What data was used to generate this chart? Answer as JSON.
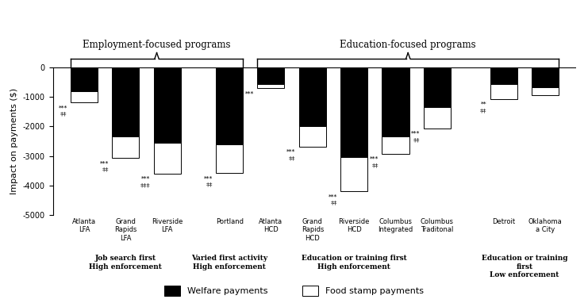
{
  "bars": [
    {
      "label": "Atlanta\nLFA",
      "welfare": -800,
      "foodstamp": -390,
      "sig1": "***",
      "sig2": "‡‡"
    },
    {
      "label": "Grand\nRapids\nLFA",
      "welfare": -2350,
      "foodstamp": -720,
      "sig1": "***",
      "sig2": "‡‡"
    },
    {
      "label": "Riverside\nLFA",
      "welfare": -2550,
      "foodstamp": -1050,
      "sig1": "***",
      "sig2": "‡‡‡"
    },
    {
      "label": "Portland",
      "welfare": -2600,
      "foodstamp": -980,
      "sig1": "***",
      "sig2": "‡‡"
    },
    {
      "label": "Atlanta\nHCD",
      "welfare": -570,
      "foodstamp": -130,
      "sig1": "***",
      "sig2": ""
    },
    {
      "label": "Grand\nRapids\nHCD",
      "welfare": -2000,
      "foodstamp": -680,
      "sig1": "***",
      "sig2": "‡‡"
    },
    {
      "label": "Riverside\nHCD",
      "welfare": -3050,
      "foodstamp": -1150,
      "sig1": "***",
      "sig2": "‡‡"
    },
    {
      "label": "Columbus\nIntegrated",
      "welfare": -2350,
      "foodstamp": -580,
      "sig1": "***",
      "sig2": "‡‡"
    },
    {
      "label": "Columbus\nTraditonal",
      "welfare": -1350,
      "foodstamp": -720,
      "sig1": "***",
      "sig2": "‡‡"
    },
    {
      "label": "Detroit",
      "welfare": -560,
      "foodstamp": -510,
      "sig1": "**",
      "sig2": "‡‡"
    },
    {
      "label": "Oklahoma\na City",
      "welfare": -680,
      "foodstamp": -270,
      "sig1": "",
      "sig2": ""
    }
  ],
  "group_labels": [
    "Job search first\nHigh enforcement",
    "Varied first activity\nHigh enforcement",
    "Education or training first\nHigh enforcement",
    "Education or training\nfirst\nLow enforcement"
  ],
  "group_bar_indices": [
    [
      0,
      1,
      2
    ],
    [
      3
    ],
    [
      4,
      5,
      6,
      7,
      8
    ],
    [
      9,
      10
    ]
  ],
  "emp_brace_label": "Employment-focused programs",
  "edu_brace_label": "Education-focused programs",
  "emp_bars": [
    0,
    1,
    2,
    3
  ],
  "edu_bars": [
    4,
    5,
    6,
    7,
    8,
    9,
    10
  ],
  "welfare_color": "#000000",
  "foodstamp_color": "#ffffff",
  "bar_width": 0.65,
  "ylim": [
    -5000,
    0
  ],
  "yticks": [
    0,
    -1000,
    -2000,
    -3000,
    -4000,
    -5000
  ],
  "ylabel": "Impact on payments ($)",
  "background_color": "#ffffff",
  "legend_welfare": "Welfare payments",
  "legend_foodstamp": "Food stamp payments",
  "group_gaps": [
    0.0,
    0.0,
    0.0,
    0.5,
    0.0,
    0.0,
    0.0,
    0.0,
    0.0,
    0.6,
    0.0
  ]
}
